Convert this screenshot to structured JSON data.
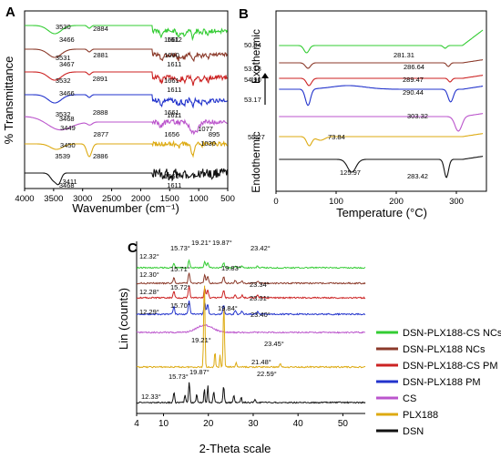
{
  "chart_data": [
    {
      "panel": "A",
      "type": "line",
      "title": "",
      "xlabel": "Wavenumber (cm⁻¹)",
      "ylabel": "% Transmittance",
      "xlim": [
        4000,
        500
      ],
      "xticks": [
        "4000",
        "3500",
        "3000",
        "2500",
        "2000",
        "1500",
        "1000",
        "500"
      ],
      "series_order_top_to_bottom": [
        "DSN-PLX188-CS NCs",
        "DSN-PLX188 NCs",
        "DSN-PLX188-CS PM",
        "DSN-PLX188 PM",
        "CS",
        "PLX188",
        "DSN"
      ],
      "annotations": [
        {
          "text": "3530",
          "x": 3530,
          "series": 0
        },
        {
          "text": "3466",
          "x": 3466,
          "series": 0
        },
        {
          "text": "2884",
          "x": 2884,
          "series": 0
        },
        {
          "text": "1661",
          "x": 1661,
          "series": 0
        },
        {
          "text": "1612",
          "x": 1612,
          "series": 0
        },
        {
          "text": "3531",
          "x": 3531,
          "series": 1
        },
        {
          "text": "3467",
          "x": 3467,
          "series": 1
        },
        {
          "text": "2881",
          "x": 2881,
          "series": 1
        },
        {
          "text": "1660",
          "x": 1660,
          "series": 1
        },
        {
          "text": "1611",
          "x": 1611,
          "series": 1
        },
        {
          "text": "3532",
          "x": 3532,
          "series": 2
        },
        {
          "text": "3466",
          "x": 3466,
          "series": 2
        },
        {
          "text": "2891",
          "x": 2891,
          "series": 2
        },
        {
          "text": "1661",
          "x": 1661,
          "series": 2
        },
        {
          "text": "1611",
          "x": 1611,
          "series": 2
        },
        {
          "text": "3532",
          "x": 3532,
          "series": 3
        },
        {
          "text": "3468",
          "x": 3468,
          "series": 3
        },
        {
          "text": "2888",
          "x": 2888,
          "series": 3
        },
        {
          "text": "1661",
          "x": 1661,
          "series": 3
        },
        {
          "text": "1611",
          "x": 1611,
          "series": 3
        },
        {
          "text": "3449",
          "x": 3449,
          "series": 4
        },
        {
          "text": "2877",
          "x": 2877,
          "series": 4
        },
        {
          "text": "1656",
          "x": 1656,
          "series": 4
        },
        {
          "text": "1077",
          "x": 1077,
          "series": 4
        },
        {
          "text": "895",
          "x": 895,
          "series": 4
        },
        {
          "text": "3450",
          "x": 3450,
          "series": 5
        },
        {
          "text": "2886",
          "x": 2886,
          "series": 5
        },
        {
          "text": "1030",
          "x": 1030,
          "series": 5
        },
        {
          "text": "3539",
          "x": 3539,
          "series": 6
        },
        {
          "text": "3468",
          "x": 3468,
          "series": 6
        },
        {
          "text": "3411",
          "x": 3411,
          "series": 6
        },
        {
          "text": "1661",
          "x": 1661,
          "series": 6
        },
        {
          "text": "1611",
          "x": 1611,
          "series": 6
        }
      ]
    },
    {
      "panel": "B",
      "type": "line",
      "title": "",
      "xlabel": "Temperature (°C)",
      "ylabel_top": "Exothermic",
      "ylabel_bottom": "Endothermic",
      "xlim": [
        0,
        350
      ],
      "xticks": [
        "0",
        "100",
        "200",
        "300"
      ],
      "annotations": [
        {
          "text": "50.84",
          "x": 50.84,
          "series": 0
        },
        {
          "text": "281.31",
          "x": 281.31,
          "series": 0
        },
        {
          "text": "53.18",
          "x": 53.18,
          "series": 1
        },
        {
          "text": "286.64",
          "x": 286.64,
          "series": 1
        },
        {
          "text": "54.90",
          "x": 54.9,
          "series": 2
        },
        {
          "text": "289.47",
          "x": 289.47,
          "series": 2
        },
        {
          "text": "53.17",
          "x": 53.17,
          "series": 3
        },
        {
          "text": "290.44",
          "x": 290.44,
          "series": 3
        },
        {
          "text": "303.32",
          "x": 303.32,
          "series": 4
        },
        {
          "text": "55.27",
          "x": 55.27,
          "series": 5
        },
        {
          "text": "73.84",
          "x": 73.84,
          "series": 5
        },
        {
          "text": "125.97",
          "x": 125.97,
          "series": 6
        },
        {
          "text": "283.42",
          "x": 283.42,
          "series": 6
        }
      ]
    },
    {
      "panel": "C",
      "type": "line",
      "title": "",
      "xlabel": "2-Theta scale",
      "ylabel": "Lin (counts)",
      "xlim": [
        4,
        55
      ],
      "xticks": [
        "4",
        "10",
        "20",
        "30",
        "40",
        "50"
      ],
      "annotations": [
        {
          "text": "12.32°",
          "x": 12.32,
          "series": 0
        },
        {
          "text": "15.73°",
          "x": 15.73,
          "series": 0
        },
        {
          "text": "19.21°",
          "x": 19.21,
          "series": 0
        },
        {
          "text": "19.87°",
          "x": 19.87,
          "series": 0
        },
        {
          "text": "23.42°",
          "x": 23.42,
          "series": 0
        },
        {
          "text": "12.30°",
          "x": 12.3,
          "series": 1
        },
        {
          "text": "15.71°",
          "x": 15.71,
          "series": 1
        },
        {
          "text": "19.83°",
          "x": 19.83,
          "series": 1
        },
        {
          "text": "23.34°",
          "x": 23.34,
          "series": 1
        },
        {
          "text": "12.28°",
          "x": 12.28,
          "series": 2
        },
        {
          "text": "15.72°",
          "x": 15.72,
          "series": 2
        },
        {
          "text": "23.31°",
          "x": 23.31,
          "series": 2
        },
        {
          "text": "12.29°",
          "x": 12.29,
          "series": 3
        },
        {
          "text": "15.70°",
          "x": 15.7,
          "series": 3
        },
        {
          "text": "19.84°",
          "x": 19.84,
          "series": 3
        },
        {
          "text": "23.40°",
          "x": 23.4,
          "series": 3
        },
        {
          "text": "19.21°",
          "x": 19.21,
          "series": 4
        },
        {
          "text": "23.45°",
          "x": 23.45,
          "series": 5
        },
        {
          "text": "21.48°",
          "x": 21.48,
          "series": 5
        },
        {
          "text": "22.59°",
          "x": 22.59,
          "series": 5
        },
        {
          "text": "15.73°",
          "x": 15.73,
          "series": 6
        },
        {
          "text": "19.87°",
          "x": 19.87,
          "series": 6
        },
        {
          "text": "12.33°",
          "x": 12.33,
          "series": 6
        }
      ]
    }
  ],
  "legend": {
    "items": [
      {
        "name": "DSN-PLX188-CS NCs",
        "color": "#33cc33"
      },
      {
        "name": "DSN-PLX188 NCs",
        "color": "#8b3a2a"
      },
      {
        "name": "DSN-PLX188-CS PM",
        "color": "#cc2222"
      },
      {
        "name": "DSN-PLX188 PM",
        "color": "#2233cc"
      },
      {
        "name": "CS",
        "color": "#bb55cc"
      },
      {
        "name": "PLX188",
        "color": "#ddaa11"
      },
      {
        "name": "DSN",
        "color": "#111111"
      }
    ]
  },
  "panel_labels": {
    "a": "A",
    "b": "B",
    "c": "C"
  }
}
